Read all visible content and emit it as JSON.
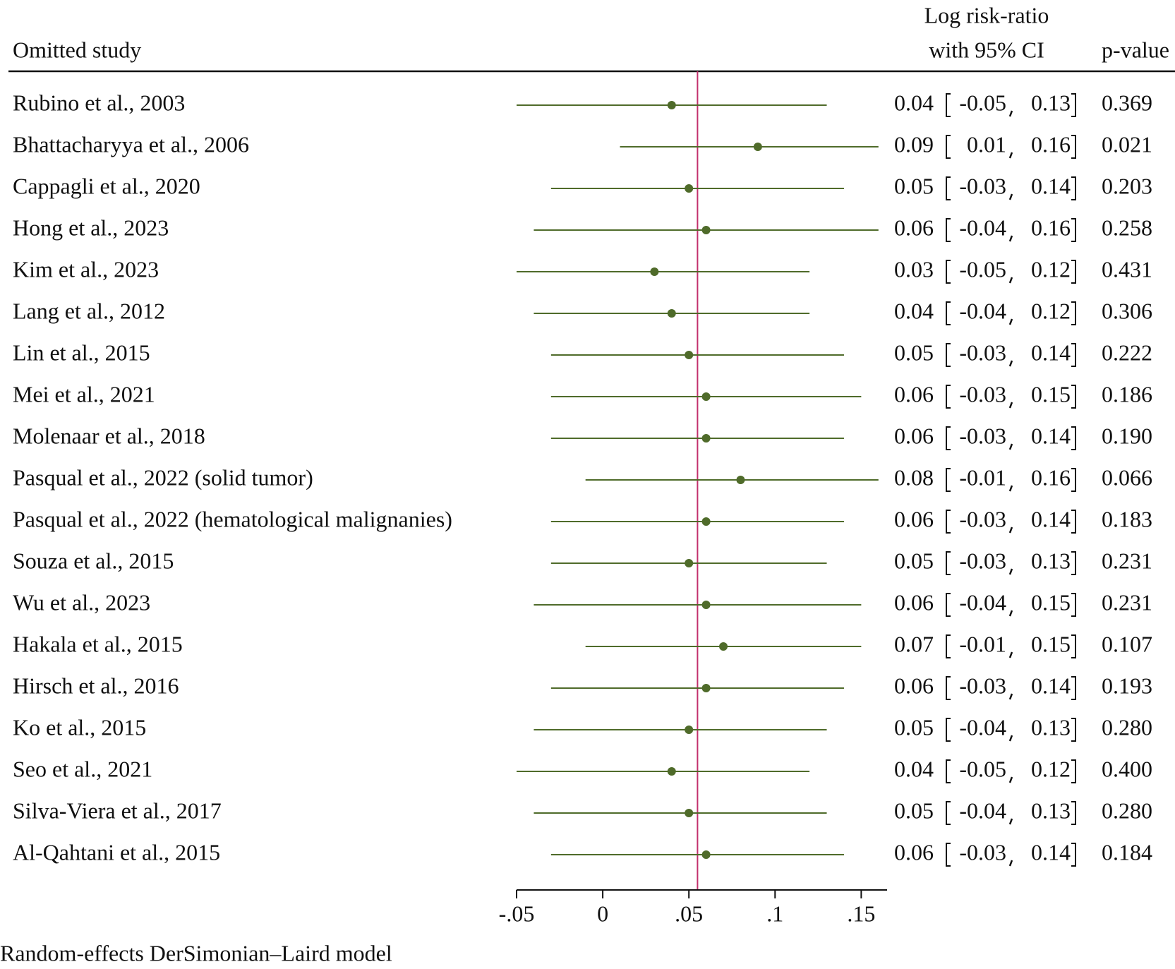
{
  "chart_data": {
    "type": "forest",
    "header": {
      "label_column": "Omitted study",
      "estimate_column": [
        "Log risk-ratio",
        "with 95% CI"
      ],
      "p_column": "p-value"
    },
    "footnote": "Random-effects DerSimonian–Laird model",
    "categories": [
      "Rubino et al., 2003",
      "Bhattacharyya et al., 2006",
      "Cappagli et al., 2020",
      "Hong et al., 2023",
      "Kim et al., 2023",
      "Lang et al., 2012",
      "Lin et al., 2015",
      "Mei et al., 2021",
      "Molenaar et al., 2018",
      "Pasqual et al., 2022 (solid tumor)",
      "Pasqual et al., 2022 (hematological malignanies)",
      "Souza et al., 2015",
      "Wu et al., 2023",
      "Hakala et al., 2015",
      "Hirsch et al., 2016",
      "Ko et al., 2015",
      "Seo et al., 2021",
      "Silva-Viera et al., 2017",
      "Al-Qahtani et al., 2015"
    ],
    "values": [
      0.04,
      0.09,
      0.05,
      0.06,
      0.03,
      0.04,
      0.05,
      0.06,
      0.06,
      0.08,
      0.06,
      0.05,
      0.06,
      0.07,
      0.06,
      0.05,
      0.04,
      0.05,
      0.06
    ],
    "lower": [
      -0.05,
      0.01,
      -0.03,
      -0.04,
      -0.05,
      -0.04,
      -0.03,
      -0.03,
      -0.03,
      -0.01,
      -0.03,
      -0.03,
      -0.04,
      -0.01,
      -0.03,
      -0.04,
      -0.05,
      -0.04,
      -0.03
    ],
    "upper": [
      0.13,
      0.16,
      0.14,
      0.16,
      0.12,
      0.12,
      0.14,
      0.15,
      0.14,
      0.16,
      0.14,
      0.13,
      0.15,
      0.15,
      0.14,
      0.13,
      0.12,
      0.13,
      0.14
    ],
    "p_values": [
      "0.369",
      "0.021",
      "0.203",
      "0.258",
      "0.431",
      "0.306",
      "0.222",
      "0.186",
      "0.190",
      "0.066",
      "0.183",
      "0.231",
      "0.231",
      "0.107",
      "0.193",
      "0.280",
      "0.400",
      "0.280",
      "0.184"
    ],
    "color": "#4f6b2a",
    "ref_line": 0.055,
    "ref_color": "#c2306c",
    "xlim": [
      -0.05,
      0.165
    ],
    "xticks": [
      {
        "value": -0.05,
        "label": "-.05"
      },
      0,
      {
        "value": 0.05,
        "label": ".05"
      },
      {
        "value": 0.1,
        "label": ".1"
      },
      {
        "value": 0.15,
        "label": ".15"
      }
    ]
  }
}
